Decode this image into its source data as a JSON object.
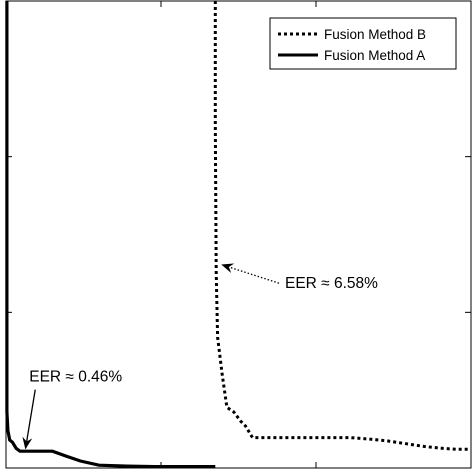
{
  "chart_data": {
    "type": "line",
    "title": "",
    "xlabel": "",
    "ylabel": "",
    "xlim": [
      0,
      1
    ],
    "ylim": [
      0,
      1
    ],
    "grid": false,
    "legend_placement": "top-right",
    "series": [
      {
        "name": "Fusion Method B",
        "style": "dotted",
        "color": "#000000",
        "points": [
          [
            0.45,
            1.0
          ],
          [
            0.45,
            0.74
          ],
          [
            0.452,
            0.42
          ],
          [
            0.455,
            0.28
          ],
          [
            0.465,
            0.2
          ],
          [
            0.475,
            0.13
          ],
          [
            0.49,
            0.12
          ],
          [
            0.505,
            0.1
          ],
          [
            0.515,
            0.09
          ],
          [
            0.53,
            0.065
          ],
          [
            0.55,
            0.065
          ],
          [
            0.58,
            0.065
          ],
          [
            0.62,
            0.065
          ],
          [
            0.66,
            0.065
          ],
          [
            0.7,
            0.065
          ],
          [
            0.74,
            0.065
          ],
          [
            0.78,
            0.062
          ],
          [
            0.82,
            0.058
          ],
          [
            0.86,
            0.052
          ],
          [
            0.9,
            0.046
          ],
          [
            0.94,
            0.042
          ],
          [
            0.97,
            0.04
          ],
          [
            1.0,
            0.04
          ]
        ]
      },
      {
        "name": "Fusion Method A",
        "style": "solid",
        "color": "#000000",
        "points": [
          [
            0.002,
            1.0
          ],
          [
            0.002,
            0.12
          ],
          [
            0.004,
            0.08
          ],
          [
            0.008,
            0.06
          ],
          [
            0.014,
            0.055
          ],
          [
            0.022,
            0.042
          ],
          [
            0.03,
            0.036
          ],
          [
            0.06,
            0.036
          ],
          [
            0.1,
            0.036
          ],
          [
            0.13,
            0.025
          ],
          [
            0.16,
            0.015
          ],
          [
            0.2,
            0.006
          ],
          [
            0.26,
            0.004
          ],
          [
            0.32,
            0.003
          ],
          [
            0.38,
            0.003
          ],
          [
            0.45,
            0.003
          ]
        ]
      }
    ],
    "annotations": [
      {
        "text": "EER ≈ 6.58%",
        "x": 0.6,
        "y": 0.385,
        "arrow_to": [
          0.465,
          0.435
        ],
        "arrow_style": "dotted"
      },
      {
        "text": "EER ≈ 0.46%",
        "x": 0.05,
        "y": 0.185,
        "arrow_to": [
          0.042,
          0.042
        ],
        "arrow_style": "solid"
      }
    ]
  }
}
